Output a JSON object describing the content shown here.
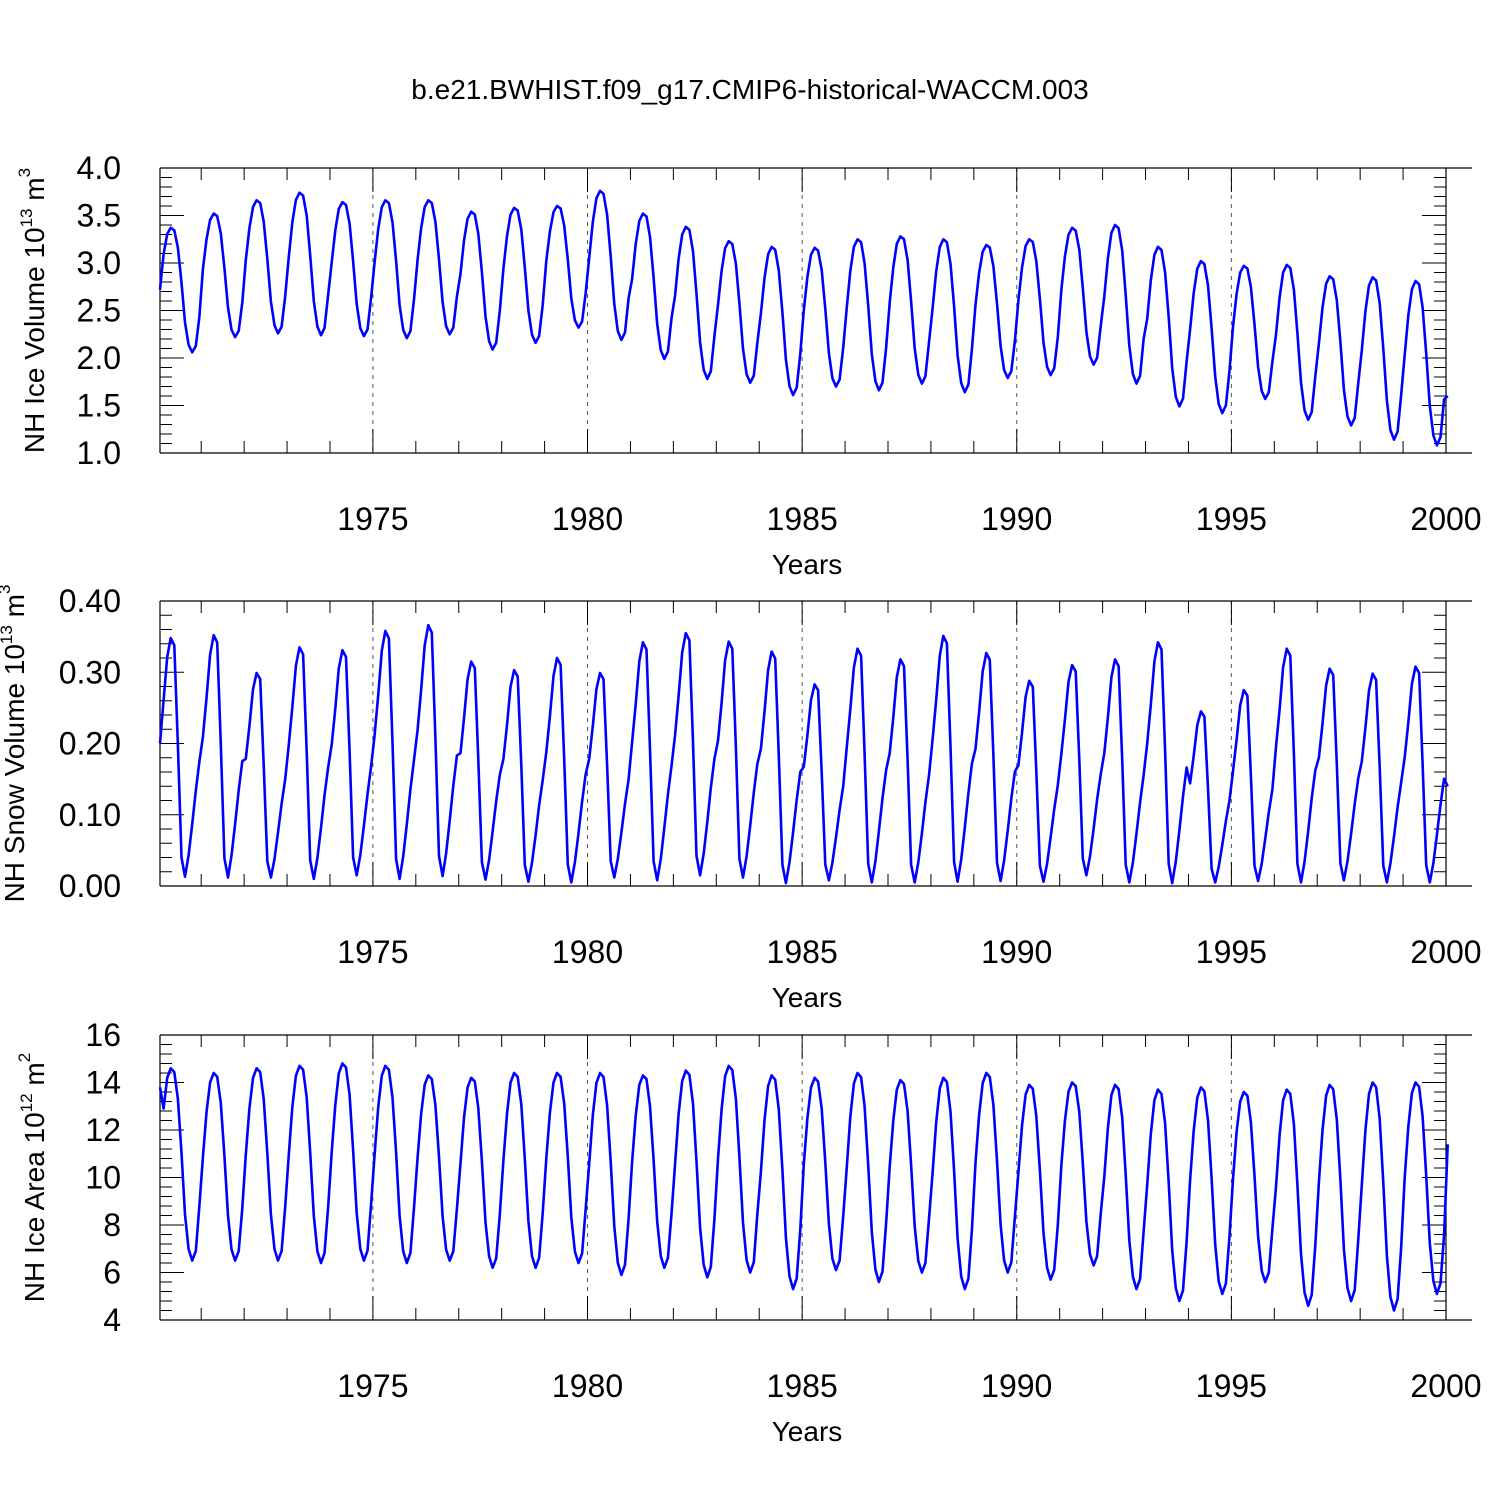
{
  "title": "b.e21.BWHIST.f09_g17.CMIP6-historical-WACCM.003",
  "colors": {
    "series": "#0000ff",
    "axis": "#000000",
    "grid": "#555555"
  },
  "chart_data": [
    {
      "type": "line",
      "series_name": "NH Ice Volume",
      "ylabel_main": "NH Ice Volume 10",
      "ylabel_exp": "13",
      "ylabel_unit": " m",
      "ylabel_unit_exp": "3",
      "xlabel": "Years",
      "xlim": [
        1970.04,
        2000.0
      ],
      "ylim": [
        1.0,
        4.0
      ],
      "yticks": [
        1.0,
        1.5,
        2.0,
        2.5,
        3.0,
        3.5,
        4.0
      ],
      "ytick_labels": [
        "1.0",
        "1.5",
        "2.0",
        "2.5",
        "3.0",
        "3.5",
        "4.0"
      ],
      "xticks": [
        1975,
        1980,
        1985,
        1990,
        1995,
        2000
      ],
      "xtick_labels": [
        "1975",
        "1980",
        "1985",
        "1990",
        "1995",
        "2000"
      ],
      "grid_x": [
        1975,
        1980,
        1985,
        1990,
        1995
      ],
      "x_start": 1970.04,
      "x_step": 0.08333,
      "year_max": [
        3.37,
        3.52,
        3.66,
        3.74,
        3.64,
        3.66,
        3.66,
        3.54,
        3.58,
        3.6,
        3.76,
        3.52,
        3.38,
        3.23,
        3.17,
        3.16,
        3.25,
        3.28,
        3.25,
        3.19,
        3.25,
        3.37,
        3.4,
        3.17,
        3.02,
        2.97,
        2.98,
        2.86,
        2.85,
        2.81
      ],
      "year_min": [
        2.06,
        2.22,
        2.26,
        2.24,
        2.23,
        2.21,
        2.25,
        2.09,
        2.16,
        2.32,
        2.19,
        1.99,
        1.78,
        1.74,
        1.61,
        1.7,
        1.66,
        1.73,
        1.64,
        1.79,
        1.82,
        1.93,
        1.73,
        1.49,
        1.42,
        1.57,
        1.35,
        1.29,
        1.14,
        1.08
      ],
      "start_value": 2.72,
      "end_value": 1.6
    },
    {
      "type": "line",
      "series_name": "NH Snow Volume",
      "ylabel_main": "NH Snow Volume 10",
      "ylabel_exp": "13",
      "ylabel_unit": " m",
      "ylabel_unit_exp": "3",
      "xlabel": "Years",
      "xlim": [
        1970.04,
        2000.0
      ],
      "ylim": [
        0.0,
        0.4
      ],
      "yticks": [
        0.0,
        0.1,
        0.2,
        0.3,
        0.4
      ],
      "ytick_labels": [
        "0.00",
        "0.10",
        "0.20",
        "0.30",
        "0.40"
      ],
      "xticks": [
        1975,
        1980,
        1985,
        1990,
        1995,
        2000
      ],
      "xtick_labels": [
        "1975",
        "1980",
        "1985",
        "1990",
        "1995",
        "2000"
      ],
      "grid_x": [
        1975,
        1980,
        1985,
        1990,
        1995
      ],
      "x_start": 1970.04,
      "x_step": 0.08333,
      "year_max": [
        0.348,
        0.352,
        0.299,
        0.335,
        0.331,
        0.358,
        0.366,
        0.315,
        0.303,
        0.32,
        0.299,
        0.342,
        0.355,
        0.343,
        0.329,
        0.283,
        0.333,
        0.318,
        0.351,
        0.327,
        0.288,
        0.31,
        0.318,
        0.342,
        0.245,
        0.275,
        0.333,
        0.305,
        0.298,
        0.308
      ],
      "year_min": [
        0.013,
        0.012,
        0.012,
        0.01,
        0.015,
        0.01,
        0.014,
        0.009,
        0.006,
        0.005,
        0.012,
        0.008,
        0.015,
        0.012,
        0.004,
        0.008,
        0.005,
        0.005,
        0.006,
        0.007,
        0.006,
        0.015,
        0.005,
        0.004,
        0.005,
        0.007,
        0.005,
        0.008,
        0.005,
        0.005
      ],
      "start_value": 0.2,
      "end_value": 0.14
    },
    {
      "type": "line",
      "series_name": "NH Ice Area",
      "ylabel_main": "NH Ice Area 10",
      "ylabel_exp": "12",
      "ylabel_unit": " m",
      "ylabel_unit_exp": "2",
      "xlabel": "Years",
      "xlim": [
        1970.04,
        2000.0
      ],
      "ylim": [
        4,
        16
      ],
      "yticks": [
        4,
        6,
        8,
        10,
        12,
        14,
        16
      ],
      "ytick_labels": [
        "4",
        "6",
        "8",
        "10",
        "12",
        "14",
        "16"
      ],
      "xticks": [
        1975,
        1980,
        1985,
        1990,
        1995,
        2000
      ],
      "xtick_labels": [
        "1975",
        "1980",
        "1985",
        "1990",
        "1995",
        "2000"
      ],
      "grid_x": [
        1975,
        1980,
        1985,
        1990,
        1995
      ],
      "x_start": 1970.04,
      "x_step": 0.08333,
      "year_max": [
        14.6,
        14.4,
        14.6,
        14.7,
        14.8,
        14.7,
        14.3,
        14.2,
        14.4,
        14.4,
        14.4,
        14.3,
        14.5,
        14.7,
        14.3,
        14.2,
        14.4,
        14.1,
        14.2,
        14.4,
        13.9,
        14.0,
        13.9,
        13.7,
        13.8,
        13.6,
        13.7,
        13.9,
        14.0,
        14.0
      ],
      "year_min": [
        6.5,
        6.5,
        6.5,
        6.4,
        6.5,
        6.4,
        6.5,
        6.2,
        6.2,
        6.4,
        5.9,
        6.2,
        5.8,
        6.0,
        5.3,
        6.1,
        5.6,
        6.0,
        5.3,
        6.0,
        5.7,
        6.3,
        5.3,
        4.8,
        5.1,
        5.6,
        4.6,
        4.8,
        4.4,
        5.1
      ],
      "start_value": 13.8,
      "end_value": 11.4
    }
  ]
}
